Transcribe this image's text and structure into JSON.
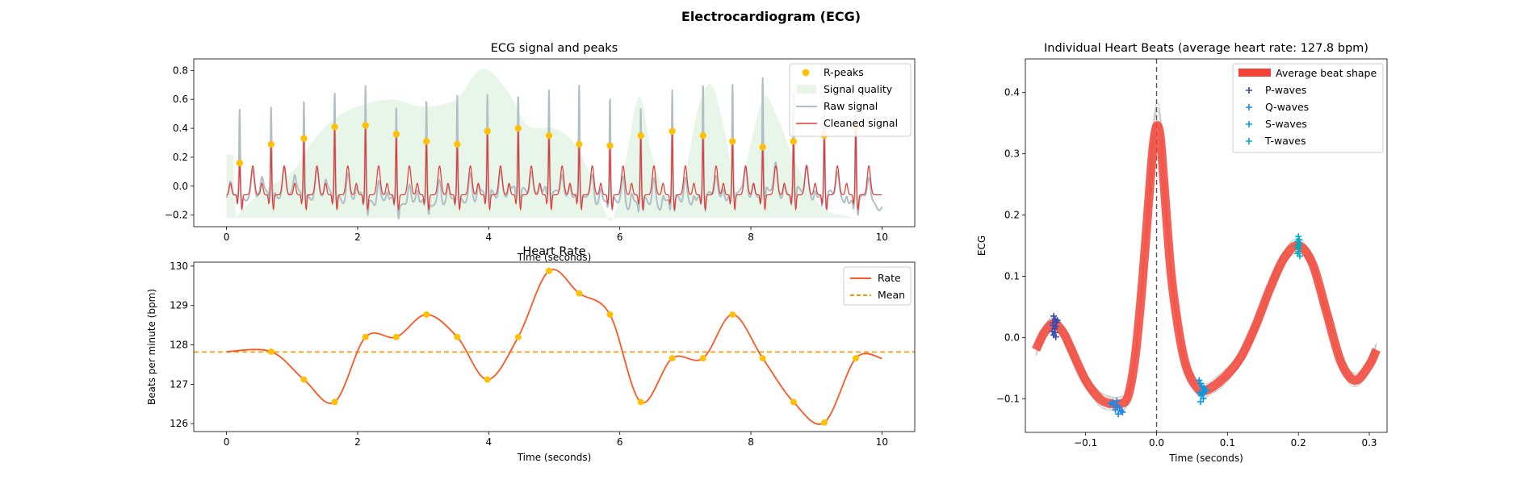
{
  "figure": {
    "title": "Electrocardiogram (ECG)"
  },
  "colors": {
    "r_peaks": "#FFC107",
    "signal_quality": "#E8F5E9",
    "raw_signal": "#B0BEC5",
    "cleaned_signal": "#E53935",
    "rate": "#FF5722",
    "mean": "#FF9800",
    "average_beat": "#F44336",
    "p_waves": "#3949AB",
    "q_waves": "#1E88E5",
    "s_waves": "#039BE5",
    "t_waves": "#00ACC1",
    "individual_beats": "#cccccc",
    "vline": "#555555"
  },
  "chart_data": [
    {
      "id": "ecg",
      "type": "line",
      "title": "ECG signal and peaks",
      "xlabel": "Time (seconds)",
      "ylabel": "",
      "xlim": [
        -0.5,
        10.5
      ],
      "ylim": [
        -0.28,
        0.88
      ],
      "xticks": [
        0,
        2,
        4,
        6,
        8,
        10
      ],
      "yticks": [
        -0.2,
        0.0,
        0.2,
        0.4,
        0.6,
        0.8
      ],
      "ytick_labels": [
        "−0.2",
        "0.0",
        "0.2",
        "0.4",
        "0.6",
        "0.8"
      ],
      "legend": [
        "R-peaks",
        "Signal quality",
        "Raw signal",
        "Cleaned signal"
      ],
      "legend_position": "top-right",
      "r_peaks": {
        "x": [
          0.2,
          0.68,
          1.18,
          1.65,
          2.12,
          2.59,
          3.05,
          3.52,
          3.98,
          4.45,
          4.92,
          5.38,
          5.85,
          6.32,
          6.8,
          7.27,
          7.72,
          8.18,
          8.65,
          9.12,
          9.6
        ],
        "y": [
          0.16,
          0.29,
          0.33,
          0.41,
          0.42,
          0.36,
          0.31,
          0.29,
          0.38,
          0.4,
          0.35,
          0.29,
          0.28,
          0.35,
          0.38,
          0.35,
          0.31,
          0.27,
          0.31,
          0.35,
          0.41
        ]
      },
      "raw_peak_heights": [
        0.55,
        0.55,
        0.6,
        0.73,
        0.81,
        0.66,
        0.67,
        0.68,
        0.68,
        0.66,
        0.68,
        0.72,
        0.67,
        0.63,
        0.78,
        0.8,
        0.73,
        0.78,
        0.72,
        0.73,
        0.71
      ],
      "signal_quality": {
        "x": [
          0,
          0.1,
          0.14,
          0.5,
          1.0,
          1.3,
          1.6,
          2.0,
          2.5,
          3.0,
          3.5,
          3.8,
          4.0,
          4.3,
          4.6,
          5.0,
          5.3,
          5.55,
          5.75,
          5.9,
          6.1,
          6.3,
          6.5,
          6.8,
          7.0,
          7.2,
          7.4,
          7.6,
          7.8,
          8.0,
          8.2,
          8.4,
          8.6,
          8.8,
          9.0,
          9.2,
          9.4,
          9.6,
          9.8,
          10.0
        ],
        "y": [
          0.22,
          0.22,
          -0.22,
          -0.05,
          0.1,
          0.3,
          0.45,
          0.55,
          0.6,
          0.55,
          0.6,
          0.78,
          0.8,
          0.65,
          0.42,
          0.4,
          0.3,
          0.08,
          -0.15,
          -0.22,
          0.2,
          0.62,
          0.2,
          -0.12,
          0.1,
          0.55,
          0.7,
          0.38,
          -0.05,
          0.3,
          0.62,
          0.48,
          0.25,
          0.05,
          -0.1,
          -0.18,
          -0.2,
          -0.22,
          -0.22,
          -0.22
        ]
      }
    },
    {
      "id": "rate",
      "type": "line",
      "title": "Heart Rate",
      "xlabel": "Time (seconds)",
      "ylabel": "Beats per minute (bpm)",
      "xlim": [
        -0.5,
        10.5
      ],
      "ylim": [
        125.8,
        130.1
      ],
      "xticks": [
        0,
        2,
        4,
        6,
        8,
        10
      ],
      "yticks": [
        126,
        127,
        128,
        129,
        130
      ],
      "legend": [
        "Rate",
        "Mean"
      ],
      "legend_position": "top-right",
      "mean": 127.82,
      "points": {
        "x": [
          0,
          0.68,
          1.18,
          1.65,
          2.12,
          2.59,
          3.05,
          3.52,
          3.98,
          4.45,
          4.92,
          5.38,
          5.85,
          6.32,
          6.8,
          7.27,
          7.72,
          8.18,
          8.65,
          9.12,
          9.6,
          10.0
        ],
        "y": [
          127.83,
          127.83,
          127.12,
          126.55,
          128.2,
          128.2,
          128.77,
          128.2,
          127.12,
          128.2,
          129.88,
          129.31,
          128.77,
          126.55,
          127.66,
          127.66,
          128.77,
          127.66,
          126.55,
          126.03,
          127.66,
          127.66
        ]
      },
      "markers_x": [
        0.68,
        1.18,
        1.65,
        2.12,
        2.59,
        3.05,
        3.52,
        3.98,
        4.45,
        4.92,
        5.38,
        5.85,
        6.32,
        6.8,
        7.27,
        7.72,
        8.18,
        8.65,
        9.12,
        9.6
      ]
    },
    {
      "id": "beats",
      "type": "line",
      "title": "Individual Heart Beats (average heart rate: 127.8 bpm)",
      "xlabel": "Time (seconds)",
      "ylabel": "ECG",
      "xlim": [
        -0.185,
        0.325
      ],
      "ylim": [
        -0.155,
        0.455
      ],
      "xticks": [
        -0.1,
        0.0,
        0.1,
        0.2,
        0.3
      ],
      "xtick_labels": [
        "−0.1",
        "0.0",
        "0.1",
        "0.2",
        "0.3"
      ],
      "yticks": [
        -0.1,
        0.0,
        0.1,
        0.2,
        0.3,
        0.4
      ],
      "ytick_labels": [
        "−0.1",
        "0.0",
        "0.1",
        "0.2",
        "0.3",
        "0.4"
      ],
      "legend": [
        "Average beat shape",
        "P-waves",
        "Q-waves",
        "S-waves",
        "T-waves"
      ],
      "legend_position": "top-right",
      "average_beat": {
        "x": [
          -0.17,
          -0.16,
          -0.15,
          -0.145,
          -0.14,
          -0.13,
          -0.12,
          -0.1,
          -0.08,
          -0.065,
          -0.05,
          -0.04,
          -0.03,
          -0.02,
          -0.01,
          -0.005,
          0.0,
          0.005,
          0.01,
          0.02,
          0.03,
          0.04,
          0.05,
          0.06,
          0.065,
          0.08,
          0.1,
          0.12,
          0.14,
          0.16,
          0.18,
          0.2,
          0.22,
          0.24,
          0.26,
          0.28,
          0.3,
          0.31
        ],
        "y": [
          -0.02,
          0.005,
          0.02,
          0.022,
          0.02,
          0.005,
          -0.02,
          -0.07,
          -0.1,
          -0.108,
          -0.108,
          -0.095,
          -0.03,
          0.09,
          0.24,
          0.31,
          0.345,
          0.33,
          0.26,
          0.11,
          0.02,
          -0.04,
          -0.07,
          -0.085,
          -0.088,
          -0.08,
          -0.06,
          -0.03,
          0.02,
          0.08,
          0.13,
          0.15,
          0.12,
          0.04,
          -0.04,
          -0.07,
          -0.045,
          -0.02
        ]
      },
      "p_waves": {
        "x": [
          -0.145,
          -0.143,
          -0.141,
          -0.146,
          -0.142,
          -0.144,
          -0.147,
          -0.14,
          -0.143,
          -0.145,
          -0.142,
          -0.146
        ],
        "y": [
          0.035,
          0.03,
          0.025,
          0.02,
          0.018,
          0.014,
          0.01,
          0.028,
          0.008,
          0.004,
          0.001,
          0.024
        ]
      },
      "q_waves": {
        "x": [
          -0.065,
          -0.06,
          -0.055,
          -0.052,
          -0.058,
          -0.062,
          -0.05,
          -0.056,
          -0.048,
          -0.054
        ],
        "y": [
          -0.108,
          -0.11,
          -0.112,
          -0.115,
          -0.118,
          -0.106,
          -0.12,
          -0.104,
          -0.122,
          -0.125
        ]
      },
      "s_waves": {
        "x": [
          0.06,
          0.062,
          0.064,
          0.066,
          0.068,
          0.061,
          0.065,
          0.063,
          0.067,
          0.07,
          0.066,
          0.062
        ],
        "y": [
          -0.07,
          -0.075,
          -0.08,
          -0.085,
          -0.088,
          -0.09,
          -0.092,
          -0.095,
          -0.082,
          -0.086,
          -0.1,
          -0.105
        ]
      },
      "t_waves": {
        "x": [
          0.2,
          0.201,
          0.199,
          0.202,
          0.2,
          0.198,
          0.201,
          0.2,
          0.199,
          0.202
        ],
        "y": [
          0.165,
          0.16,
          0.157,
          0.153,
          0.15,
          0.148,
          0.145,
          0.14,
          0.137,
          0.133
        ]
      }
    }
  ]
}
